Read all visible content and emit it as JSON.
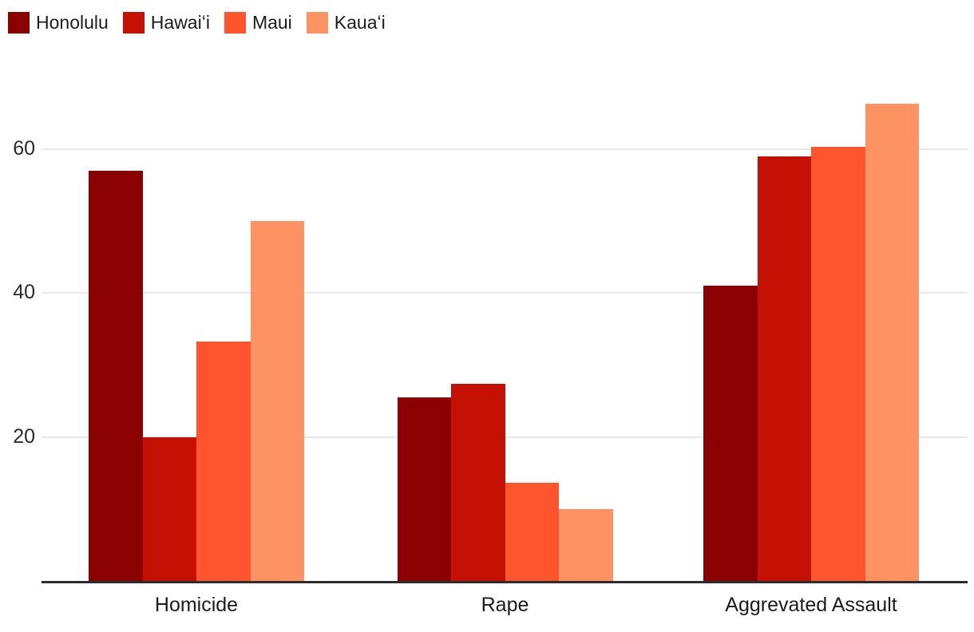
{
  "chart_data": {
    "type": "bar",
    "title": "",
    "categories": [
      "Homicide",
      "Rape",
      "Aggrevated Assault"
    ],
    "series": [
      {
        "name": "Honolulu",
        "color": "#8B0000",
        "values": [
          57,
          25.5,
          41
        ]
      },
      {
        "name": "Hawaiʻi",
        "color": "#C41104",
        "values": [
          20,
          27.4,
          59
        ]
      },
      {
        "name": "Maui",
        "color": "#FF552E",
        "values": [
          33.3,
          13.7,
          60.3
        ]
      },
      {
        "name": "Kauaʻi",
        "color": "#FD9263",
        "values": [
          50,
          10,
          66.3
        ]
      }
    ],
    "yticks": [
      20,
      40,
      60
    ],
    "ylim": [
      0,
      70
    ],
    "grid": true,
    "legend_position": "top-left",
    "colors": {
      "axis_line": "#2D2D2D",
      "gridline": "#E9E9E9",
      "text": "#1B1B1B"
    }
  }
}
